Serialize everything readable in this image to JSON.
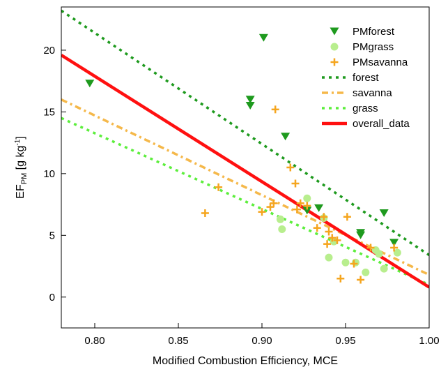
{
  "chart_data": {
    "type": "scatter",
    "title": "",
    "xlabel": "Modified Combustion Efficiency, MCE",
    "ylabel": {
      "main": "EF",
      "sub": "PM",
      "unit_pre": " [g kg",
      "unit_sup": "-1",
      "unit_post": "]"
    },
    "xlim": [
      0.78,
      1.0
    ],
    "ylim": [
      -2.5,
      23.5
    ],
    "x_ticks": [
      0.8,
      0.85,
      0.9,
      0.95,
      1.0
    ],
    "x_tick_labels": [
      "0.80",
      "0.85",
      "0.90",
      "0.95",
      "1.00"
    ],
    "y_ticks": [
      0,
      5,
      10,
      15,
      20
    ],
    "y_tick_labels": [
      "0",
      "5",
      "10",
      "15",
      "20"
    ],
    "grid": false,
    "legend_position": "top-right",
    "series": [
      {
        "name": "PMforest",
        "kind": "points",
        "marker": "triangle-down",
        "color": "#1e9a1e",
        "points": [
          [
            0.797,
            17.3
          ],
          [
            0.893,
            16.0
          ],
          [
            0.893,
            15.5
          ],
          [
            0.901,
            21.0
          ],
          [
            0.914,
            13.0
          ],
          [
            0.927,
            7.0
          ],
          [
            0.934,
            7.2
          ],
          [
            0.959,
            5.2
          ],
          [
            0.959,
            5.0
          ],
          [
            0.973,
            6.8
          ],
          [
            0.979,
            4.4
          ]
        ]
      },
      {
        "name": "PMgrass",
        "kind": "points",
        "marker": "circle",
        "color": "#b8ee8e",
        "points": [
          [
            0.911,
            6.3
          ],
          [
            0.912,
            5.5
          ],
          [
            0.927,
            8.0
          ],
          [
            0.937,
            6.4
          ],
          [
            0.94,
            3.2
          ],
          [
            0.943,
            4.5
          ],
          [
            0.95,
            2.8
          ],
          [
            0.956,
            2.8
          ],
          [
            0.962,
            2.0
          ],
          [
            0.968,
            3.8
          ],
          [
            0.97,
            3.5
          ],
          [
            0.973,
            2.3
          ],
          [
            0.981,
            3.6
          ]
        ]
      },
      {
        "name": "PMsavanna",
        "kind": "points",
        "marker": "plus",
        "color": "#f5a51e",
        "points": [
          [
            0.866,
            6.8
          ],
          [
            0.874,
            8.9
          ],
          [
            0.9,
            6.9
          ],
          [
            0.905,
            7.3
          ],
          [
            0.907,
            7.6
          ],
          [
            0.908,
            15.2
          ],
          [
            0.917,
            10.5
          ],
          [
            0.92,
            9.2
          ],
          [
            0.921,
            7.1
          ],
          [
            0.923,
            7.6
          ],
          [
            0.927,
            7.4
          ],
          [
            0.933,
            5.6
          ],
          [
            0.937,
            6.5
          ],
          [
            0.939,
            4.3
          ],
          [
            0.94,
            5.3
          ],
          [
            0.942,
            4.8
          ],
          [
            0.945,
            4.6
          ],
          [
            0.947,
            1.5
          ],
          [
            0.951,
            6.5
          ],
          [
            0.955,
            2.7
          ],
          [
            0.959,
            1.4
          ],
          [
            0.965,
            4.0
          ],
          [
            0.979,
            4.0
          ]
        ]
      },
      {
        "name": "forest",
        "kind": "line",
        "style": "dotted",
        "color": "#1e9a1e",
        "points": [
          [
            0.78,
            23.2
          ],
          [
            1.0,
            3.4
          ]
        ]
      },
      {
        "name": "savanna",
        "kind": "line",
        "style": "dashdot",
        "color": "#f5b84a",
        "points": [
          [
            0.78,
            16.0
          ],
          [
            1.0,
            1.8
          ]
        ]
      },
      {
        "name": "grass",
        "kind": "line",
        "style": "dotted",
        "color": "#5cee3c",
        "points": [
          [
            0.78,
            14.5
          ],
          [
            1.0,
            1.0
          ]
        ]
      },
      {
        "name": "overall_data",
        "kind": "line",
        "style": "solid",
        "color": "#ff1010",
        "points": [
          [
            0.78,
            19.6
          ],
          [
            1.0,
            0.8
          ]
        ]
      }
    ]
  }
}
